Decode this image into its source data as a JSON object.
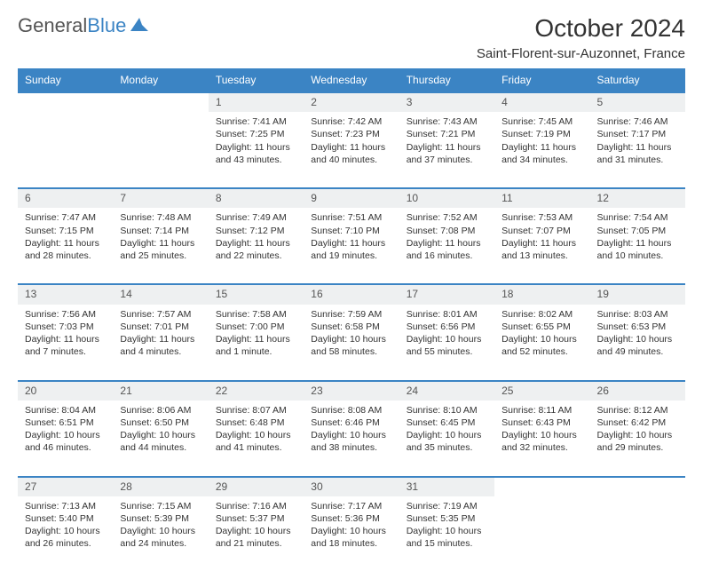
{
  "brand": {
    "part1": "General",
    "part2": "Blue"
  },
  "title": "October 2024",
  "location": "Saint-Florent-sur-Auzonnet, France",
  "dayHeaders": [
    "Sunday",
    "Monday",
    "Tuesday",
    "Wednesday",
    "Thursday",
    "Friday",
    "Saturday"
  ],
  "colors": {
    "accent": "#3b84c4",
    "header_bg": "#3b84c4",
    "daynum_bg": "#eef0f1",
    "text": "#333333"
  },
  "weeks": [
    [
      null,
      null,
      {
        "n": "1",
        "sunrise": "7:41 AM",
        "sunset": "7:25 PM",
        "daylight": "11 hours and 43 minutes."
      },
      {
        "n": "2",
        "sunrise": "7:42 AM",
        "sunset": "7:23 PM",
        "daylight": "11 hours and 40 minutes."
      },
      {
        "n": "3",
        "sunrise": "7:43 AM",
        "sunset": "7:21 PM",
        "daylight": "11 hours and 37 minutes."
      },
      {
        "n": "4",
        "sunrise": "7:45 AM",
        "sunset": "7:19 PM",
        "daylight": "11 hours and 34 minutes."
      },
      {
        "n": "5",
        "sunrise": "7:46 AM",
        "sunset": "7:17 PM",
        "daylight": "11 hours and 31 minutes."
      }
    ],
    [
      {
        "n": "6",
        "sunrise": "7:47 AM",
        "sunset": "7:15 PM",
        "daylight": "11 hours and 28 minutes."
      },
      {
        "n": "7",
        "sunrise": "7:48 AM",
        "sunset": "7:14 PM",
        "daylight": "11 hours and 25 minutes."
      },
      {
        "n": "8",
        "sunrise": "7:49 AM",
        "sunset": "7:12 PM",
        "daylight": "11 hours and 22 minutes."
      },
      {
        "n": "9",
        "sunrise": "7:51 AM",
        "sunset": "7:10 PM",
        "daylight": "11 hours and 19 minutes."
      },
      {
        "n": "10",
        "sunrise": "7:52 AM",
        "sunset": "7:08 PM",
        "daylight": "11 hours and 16 minutes."
      },
      {
        "n": "11",
        "sunrise": "7:53 AM",
        "sunset": "7:07 PM",
        "daylight": "11 hours and 13 minutes."
      },
      {
        "n": "12",
        "sunrise": "7:54 AM",
        "sunset": "7:05 PM",
        "daylight": "11 hours and 10 minutes."
      }
    ],
    [
      {
        "n": "13",
        "sunrise": "7:56 AM",
        "sunset": "7:03 PM",
        "daylight": "11 hours and 7 minutes."
      },
      {
        "n": "14",
        "sunrise": "7:57 AM",
        "sunset": "7:01 PM",
        "daylight": "11 hours and 4 minutes."
      },
      {
        "n": "15",
        "sunrise": "7:58 AM",
        "sunset": "7:00 PM",
        "daylight": "11 hours and 1 minute."
      },
      {
        "n": "16",
        "sunrise": "7:59 AM",
        "sunset": "6:58 PM",
        "daylight": "10 hours and 58 minutes."
      },
      {
        "n": "17",
        "sunrise": "8:01 AM",
        "sunset": "6:56 PM",
        "daylight": "10 hours and 55 minutes."
      },
      {
        "n": "18",
        "sunrise": "8:02 AM",
        "sunset": "6:55 PM",
        "daylight": "10 hours and 52 minutes."
      },
      {
        "n": "19",
        "sunrise": "8:03 AM",
        "sunset": "6:53 PM",
        "daylight": "10 hours and 49 minutes."
      }
    ],
    [
      {
        "n": "20",
        "sunrise": "8:04 AM",
        "sunset": "6:51 PM",
        "daylight": "10 hours and 46 minutes."
      },
      {
        "n": "21",
        "sunrise": "8:06 AM",
        "sunset": "6:50 PM",
        "daylight": "10 hours and 44 minutes."
      },
      {
        "n": "22",
        "sunrise": "8:07 AM",
        "sunset": "6:48 PM",
        "daylight": "10 hours and 41 minutes."
      },
      {
        "n": "23",
        "sunrise": "8:08 AM",
        "sunset": "6:46 PM",
        "daylight": "10 hours and 38 minutes."
      },
      {
        "n": "24",
        "sunrise": "8:10 AM",
        "sunset": "6:45 PM",
        "daylight": "10 hours and 35 minutes."
      },
      {
        "n": "25",
        "sunrise": "8:11 AM",
        "sunset": "6:43 PM",
        "daylight": "10 hours and 32 minutes."
      },
      {
        "n": "26",
        "sunrise": "8:12 AM",
        "sunset": "6:42 PM",
        "daylight": "10 hours and 29 minutes."
      }
    ],
    [
      {
        "n": "27",
        "sunrise": "7:13 AM",
        "sunset": "5:40 PM",
        "daylight": "10 hours and 26 minutes."
      },
      {
        "n": "28",
        "sunrise": "7:15 AM",
        "sunset": "5:39 PM",
        "daylight": "10 hours and 24 minutes."
      },
      {
        "n": "29",
        "sunrise": "7:16 AM",
        "sunset": "5:37 PM",
        "daylight": "10 hours and 21 minutes."
      },
      {
        "n": "30",
        "sunrise": "7:17 AM",
        "sunset": "5:36 PM",
        "daylight": "10 hours and 18 minutes."
      },
      {
        "n": "31",
        "sunrise": "7:19 AM",
        "sunset": "5:35 PM",
        "daylight": "10 hours and 15 minutes."
      },
      null,
      null
    ]
  ]
}
